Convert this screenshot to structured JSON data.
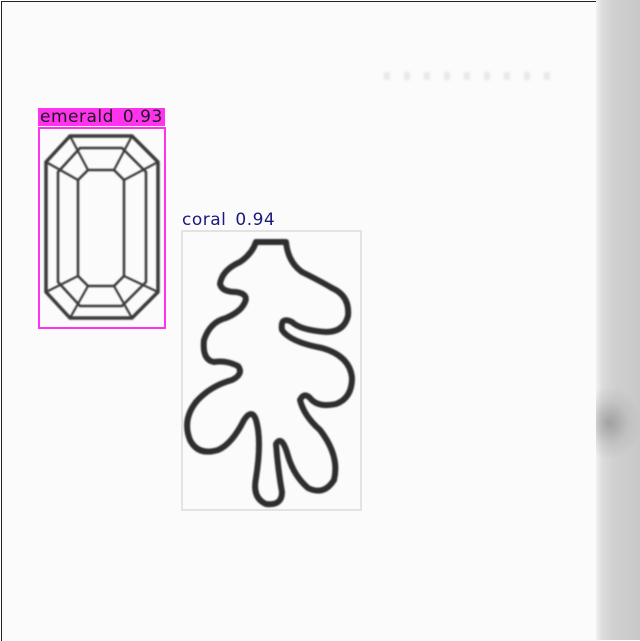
{
  "colors": {
    "emerald": "#ff33ee",
    "coral": "#dddddd",
    "coral_text": "#1a1a7a",
    "ink": "#2b2b2b"
  },
  "icons": [
    "emerald-sketch-icon",
    "coral-sketch-icon"
  ],
  "detections": [
    {
      "name": "emerald",
      "label": "emerald",
      "score": "0.93"
    },
    {
      "name": "coral",
      "label": "coral",
      "score": "0.94"
    }
  ]
}
